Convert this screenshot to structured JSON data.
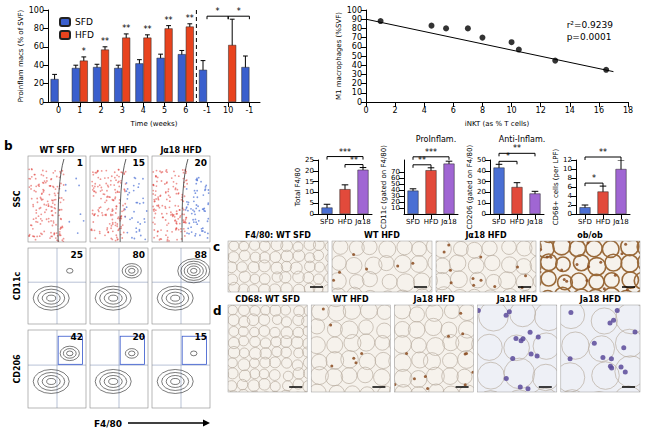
{
  "chart_data": [
    {
      "type": "bar",
      "ylabel": "Proinflam macs (% of SVF)",
      "xlabel": "Time (weeks)",
      "categories": [
        "0",
        "1",
        "2",
        "3",
        "4",
        "5",
        "6",
        "-1",
        "10",
        "-1"
      ],
      "series": [
        {
          "name": "SFD",
          "color": "#3a5fcd",
          "values": [
            25,
            37,
            38,
            37,
            42,
            48,
            52,
            35,
            null,
            38
          ],
          "errors": [
            5,
            3,
            3,
            3,
            4,
            4,
            4,
            10,
            null,
            12
          ]
        },
        {
          "name": "HFD",
          "color": "#e8431e",
          "values": [
            null,
            45,
            57,
            70,
            70,
            80,
            82,
            null,
            62,
            null
          ],
          "errors": [
            null,
            4,
            3,
            4,
            3,
            3,
            3,
            null,
            28,
            null
          ]
        }
      ],
      "ylim": [
        0,
        100
      ],
      "yticks": [
        0,
        20,
        40,
        60,
        80,
        100
      ],
      "legend": "upper left",
      "grid": false,
      "annotations": [
        {
          "index": 1,
          "text": "*"
        },
        {
          "index": 2,
          "text": "**"
        },
        {
          "index": 3,
          "text": "**"
        },
        {
          "index": 4,
          "text": "**"
        },
        {
          "index": 5,
          "text": "**"
        },
        {
          "index": 6,
          "text": "**"
        }
      ],
      "comparisons": [
        {
          "from": 7,
          "to": 8,
          "text": "*"
        },
        {
          "from": 8,
          "to": 9,
          "text": "*"
        }
      ],
      "divider_before": 7
    },
    {
      "type": "scatter",
      "xlabel": "iNKT (as % T cells)",
      "ylabel": "M1 macrophages (%SVF)",
      "x": [
        1,
        4.5,
        5.5,
        7,
        8,
        10,
        10.5,
        13,
        16.5
      ],
      "y": [
        88,
        83,
        80,
        80,
        70,
        65,
        57,
        45,
        35
      ],
      "fit": {
        "x": [
          0,
          17
        ],
        "y": [
          90,
          33
        ]
      },
      "annotations": [
        "r²=0.9239",
        "p=0.0001"
      ],
      "xlim": [
        0,
        18
      ],
      "xticks": [
        0,
        2,
        4,
        6,
        8,
        10,
        12,
        14,
        16,
        18
      ],
      "ylim": [
        0,
        100
      ],
      "yticks": [
        0,
        10,
        20,
        30,
        40,
        50,
        60,
        70,
        80,
        90,
        100
      ],
      "marker": "circle",
      "color": "#000000",
      "grid": false
    },
    {
      "type": "bar",
      "ylabel": "Total F4/80",
      "categories": [
        "SFD",
        "HFD",
        "Jα18"
      ],
      "values": [
        3,
        11.5,
        20.5
      ],
      "errors": [
        1.5,
        2,
        1
      ],
      "colors": [
        "#4a6fd4",
        "#e24a3b",
        "#a066d3"
      ],
      "ylim": [
        0,
        25
      ],
      "yticks": [
        0,
        5,
        10,
        15,
        20,
        25
      ],
      "grid": false,
      "comparisons": [
        {
          "from": 1,
          "to": 2,
          "text": "**"
        },
        {
          "from": 0,
          "to": 2,
          "text": "***"
        }
      ]
    },
    {
      "type": "bar",
      "title": "ProInflam.",
      "ylabel": "CD11c (gated on F4/80)",
      "categories": [
        "SFD",
        "HFD",
        "Jα18"
      ],
      "values": [
        39,
        73,
        84
      ],
      "errors": [
        3,
        4,
        4
      ],
      "colors": [
        "#4a6fd4",
        "#e24a3b",
        "#a066d3"
      ],
      "ylim": [
        0,
        90
      ],
      "yticks": [
        0,
        10,
        20,
        30,
        40,
        50,
        60,
        70,
        80
      ],
      "grid": false,
      "comparisons": [
        {
          "from": 0,
          "to": 1,
          "text": "**"
        },
        {
          "from": 0,
          "to": 2,
          "text": "***"
        }
      ]
    },
    {
      "type": "bar",
      "title": "Anti-Inflam.",
      "ylabel": "CD206 (gated on F4/80)",
      "categories": [
        "SFD",
        "HFD",
        "Jα18"
      ],
      "values": [
        43,
        25,
        19
      ],
      "errors": [
        3,
        4,
        2
      ],
      "colors": [
        "#4a6fd4",
        "#e24a3b",
        "#a066d3"
      ],
      "ylim": [
        0,
        50
      ],
      "yticks": [
        0,
        10,
        20,
        30,
        40,
        50
      ],
      "grid": false,
      "comparisons": [
        {
          "from": 0,
          "to": 1,
          "text": "*"
        },
        {
          "from": 0,
          "to": 2,
          "text": "**"
        }
      ]
    },
    {
      "type": "bar",
      "ylabel": "CD68+ cells (per LPF)",
      "categories": [
        "SFD",
        "HFD",
        "Jα18"
      ],
      "values": [
        1.5,
        5,
        10
      ],
      "errors": [
        0.5,
        1.2,
        2
      ],
      "colors": [
        "#4a6fd4",
        "#e24a3b",
        "#a066d3"
      ],
      "ylim": [
        0,
        12
      ],
      "yticks": [
        0,
        2,
        4,
        6,
        8,
        10,
        12
      ],
      "grid": false,
      "comparisons": [
        {
          "from": 0,
          "to": 1,
          "text": "*"
        },
        {
          "from": 0,
          "to": 2,
          "text": "**"
        }
      ]
    }
  ],
  "flow": {
    "panel": "b",
    "columns": [
      "WT SFD",
      "WT HFD",
      "Jα18 HFD"
    ],
    "rows": [
      {
        "label": "SSC",
        "values": [
          1,
          15,
          20
        ]
      },
      {
        "label": "CD11c",
        "values": [
          25,
          80,
          88
        ]
      },
      {
        "label": "CD206",
        "values": [
          42,
          20,
          15
        ]
      }
    ],
    "xlabel": "F4/80"
  },
  "histology": [
    {
      "panel": "c",
      "stain": "F4/80:",
      "images": [
        "WT SFD",
        "WT HFD",
        "Jα18 HFD",
        "ob/ob"
      ]
    },
    {
      "panel": "d",
      "stain": "CD68:",
      "images": [
        "WT SFD",
        "WT HFD",
        "Ja18 HFD",
        "Ja18 HFD",
        "Ja18 HFD"
      ]
    }
  ]
}
